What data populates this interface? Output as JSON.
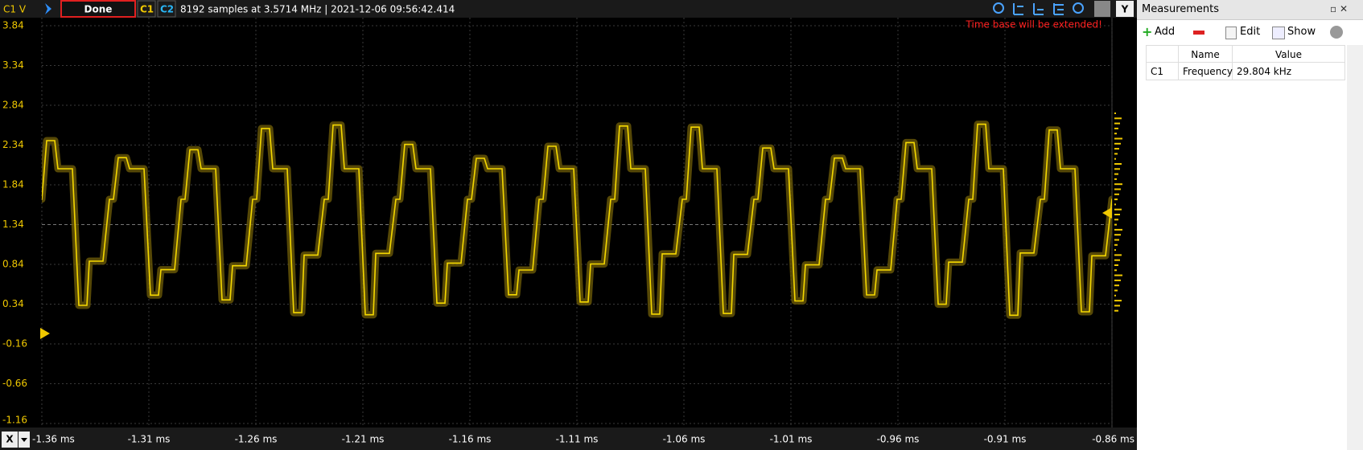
{
  "toolbar": {
    "channel_unit": "C1 V",
    "status": "Done",
    "ch1": "C1",
    "ch2": "C2",
    "info": "8192 samples at 3.5714 MHz | 2021-12-06 09:56:42.414",
    "y_button": "Y"
  },
  "plot": {
    "yticks": [
      "3.84",
      "3.34",
      "2.84",
      "2.34",
      "1.84",
      "1.34",
      "0.84",
      "0.34",
      "-0.16",
      "-0.66",
      "-1.16"
    ],
    "xticks": [
      "-1.36 ms",
      "-1.31 ms",
      "-1.26 ms",
      "-1.21 ms",
      "-1.16 ms",
      "-1.11 ms",
      "-1.06 ms",
      "-1.01 ms",
      "-0.96 ms",
      "-0.91 ms",
      "-0.86 ms"
    ],
    "warning": "Time base will be extended!",
    "x_button": "X"
  },
  "panel": {
    "title": "Measurements",
    "buttons": [
      "Add",
      "Edit",
      "Show"
    ],
    "table": {
      "headers": [
        "Name",
        "Value"
      ],
      "rows": [
        [
          "C1",
          "Frequency",
          "29.804 kHz"
        ]
      ]
    }
  }
}
